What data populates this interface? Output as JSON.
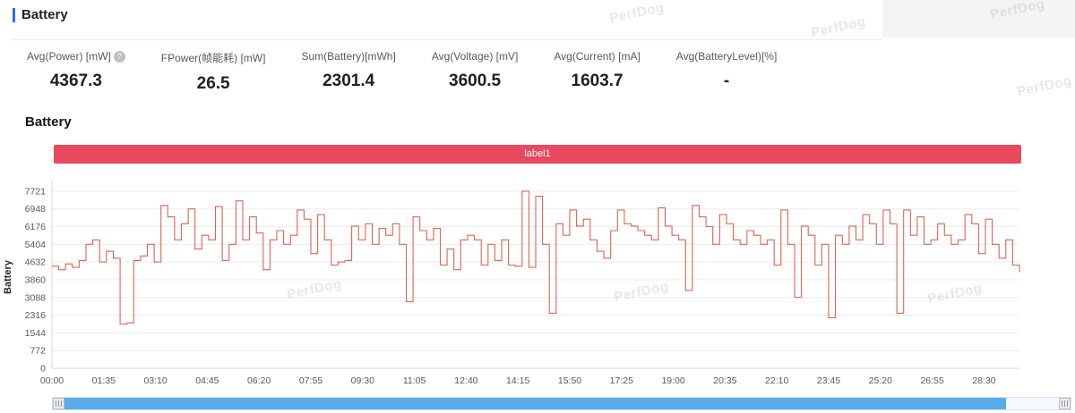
{
  "header": {
    "title": "Battery"
  },
  "stats": [
    {
      "label": "Avg(Power) [mW]",
      "value": "4367.3",
      "help_icon": "?"
    },
    {
      "label": "FPower(帧能耗) [mW]",
      "value": "26.5"
    },
    {
      "label": "Sum(Battery)[mWh]",
      "value": "2301.4"
    },
    {
      "label": "Avg(Voltage) [mV]",
      "value": "3600.5"
    },
    {
      "label": "Avg(Current) [mA]",
      "value": "1603.7"
    },
    {
      "label": "Avg(BatteryLevel)[%]",
      "value": "-"
    }
  ],
  "section": {
    "title": "Battery"
  },
  "legend": {
    "label": "label1",
    "color": "#e8495f"
  },
  "watermark": "PerfDog",
  "chart_data": {
    "type": "line",
    "step": true,
    "title": "",
    "ylabel": "Battery",
    "series_name": "label1",
    "color": "#e06450",
    "grid": true,
    "ylim": [
      0,
      7950
    ],
    "yticks": [
      0,
      772,
      1544,
      2316,
      3088,
      3860,
      4632,
      5404,
      6176,
      6948,
      7721
    ],
    "xticks": [
      "00:00",
      "01:35",
      "03:10",
      "04:45",
      "06:20",
      "07:55",
      "09:30",
      "11:05",
      "12:40",
      "14:15",
      "15:50",
      "17:25",
      "19:00",
      "20:35",
      "22:10",
      "23:45",
      "25:20",
      "26:55",
      "28:30"
    ],
    "tick_interval_seconds": 95,
    "duration_seconds": 1775,
    "values": [
      4450,
      4300,
      4550,
      4400,
      4700,
      5404,
      5600,
      4632,
      5100,
      4800,
      1930,
      1980,
      4700,
      4900,
      5404,
      4632,
      7100,
      6600,
      5600,
      6300,
      6948,
      5200,
      5800,
      5600,
      7050,
      4700,
      5404,
      7300,
      5600,
      6600,
      5900,
      4300,
      5600,
      6000,
      5404,
      5800,
      6900,
      6500,
      5000,
      6700,
      5600,
      4500,
      4632,
      4700,
      6200,
      5600,
      6300,
      5404,
      6100,
      5800,
      6300,
      5404,
      2900,
      6600,
      6000,
      5600,
      6100,
      4500,
      5200,
      4300,
      5600,
      5800,
      5600,
      4500,
      5404,
      4700,
      5600,
      4500,
      4450,
      7721,
      4400,
      7500,
      5404,
      2400,
      6300,
      5800,
      6900,
      6200,
      6500,
      5600,
      5100,
      4800,
      6000,
      6900,
      6300,
      6200,
      6000,
      5800,
      5600,
      7000,
      6200,
      5800,
      5600,
      3400,
      7100,
      6600,
      6176,
      5404,
      6700,
      6300,
      5600,
      5404,
      6000,
      5800,
      5404,
      5600,
      4500,
      6900,
      5404,
      3100,
      6200,
      5800,
      4500,
      5404,
      2200,
      5800,
      5404,
      6200,
      5600,
      6700,
      6300,
      5404,
      6900,
      6300,
      2400,
      6900,
      5800,
      6600,
      5404,
      5600,
      6300,
      5800,
      5404,
      5600,
      6700,
      6300,
      5000,
      6500,
      5404,
      4800,
      5600,
      4500,
      4200
    ]
  }
}
